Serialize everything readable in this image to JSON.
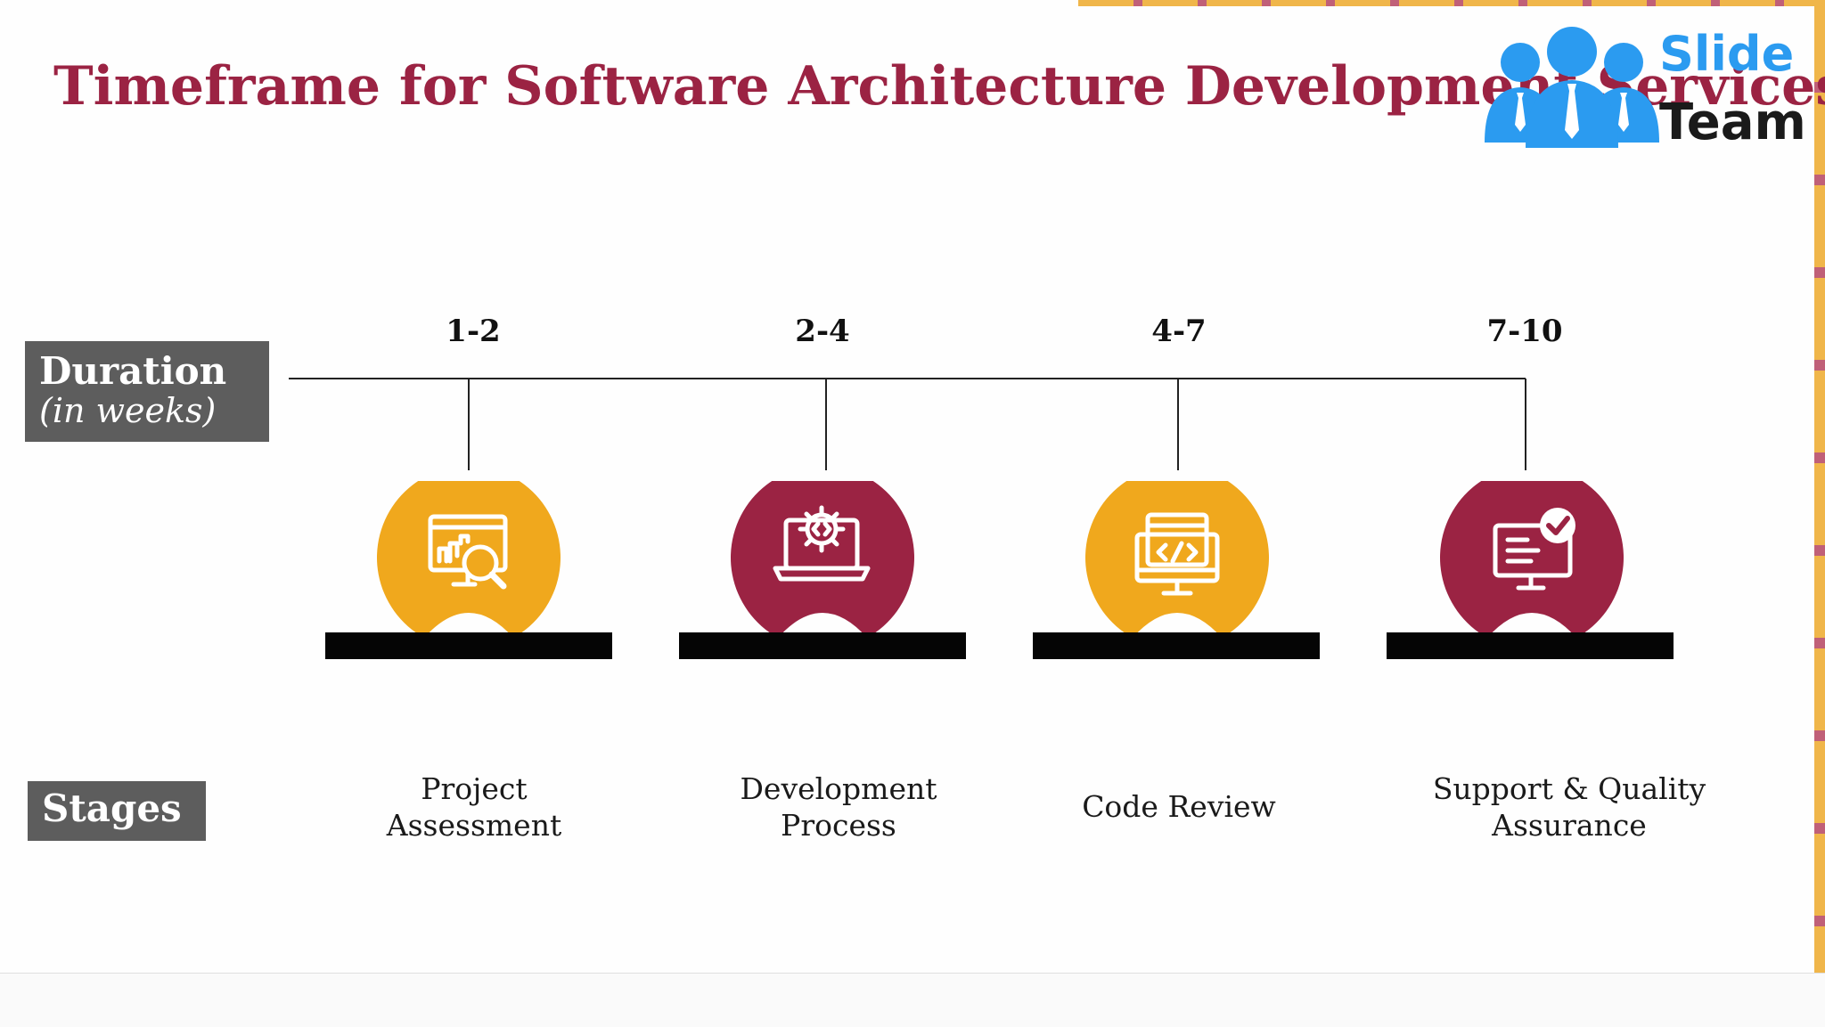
{
  "title": "Timeframe for Software Architecture Development Services",
  "logo": {
    "line1": "Slide",
    "line2": "Team"
  },
  "row_labels": {
    "duration_main": "Duration",
    "duration_sub": "(in weeks)",
    "stages": "Stages"
  },
  "colors": {
    "accent_yellow": "#f0a81d",
    "accent_maroon": "#9b2343",
    "title": "#9b2343",
    "label_box": "#5d5d5d"
  },
  "stages": [
    {
      "range": "1-2",
      "label_lines": [
        "Project",
        "Assessment"
      ],
      "icon": "analytics-monitor-search-icon",
      "color": "#f0a81d"
    },
    {
      "range": "2-4",
      "label_lines": [
        "Development",
        "Process"
      ],
      "icon": "laptop-gear-code-icon",
      "color": "#9b2343"
    },
    {
      "range": "4-7",
      "label_lines": [
        "Code Review"
      ],
      "icon": "monitor-code-icon",
      "color": "#f0a81d"
    },
    {
      "range": "7-10",
      "label_lines": [
        "Support & Quality",
        "Assurance"
      ],
      "icon": "monitor-checkmark-icon",
      "color": "#9b2343"
    }
  ]
}
